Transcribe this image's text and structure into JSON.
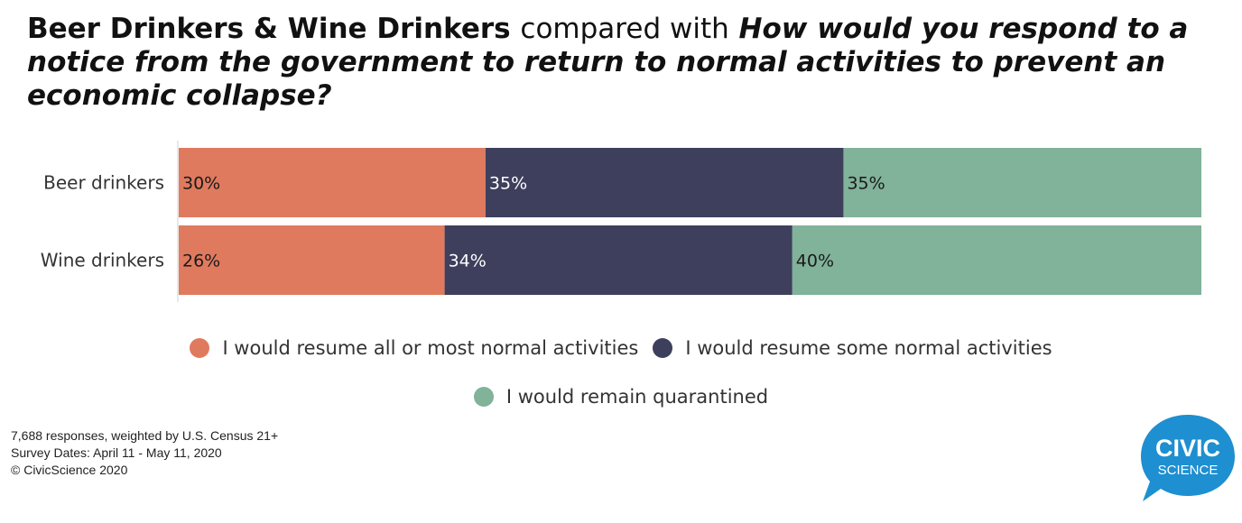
{
  "title": {
    "bold": "Beer Drinkers & Wine Drinkers",
    "normal": "compared with",
    "question": "How would you respond to a notice from the government to return to normal activities to prevent an economic collapse?"
  },
  "colors": {
    "resume_all": "#e07a5f",
    "resume_some": "#3d3f5c",
    "quarantined": "#81b29a"
  },
  "chart_data": {
    "type": "bar",
    "orientation": "horizontal",
    "stacked": true,
    "categories": [
      "Beer drinkers",
      "Wine drinkers"
    ],
    "series": [
      {
        "name": "I would resume all or most normal activities",
        "values": [
          30,
          26
        ]
      },
      {
        "name": "I would resume some normal activities",
        "values": [
          35,
          34
        ]
      },
      {
        "name": "I would remain quarantined",
        "values": [
          35,
          40
        ]
      }
    ],
    "value_suffix": "%",
    "xlim": [
      0,
      100
    ],
    "legend_position": "bottom"
  },
  "legend": {
    "items": [
      "I would resume all or most normal activities",
      "I would resume some normal activities",
      "I would remain quarantined"
    ]
  },
  "footer": {
    "line1": "7,688 responses, weighted by U.S. Census 21+",
    "line2": "Survey Dates: April 11 - May 11, 2020",
    "line3": "© CivicScience 2020"
  },
  "logo": {
    "line1": "CIVIC",
    "line2": "SCIENCE",
    "color": "#1e8fd0"
  }
}
